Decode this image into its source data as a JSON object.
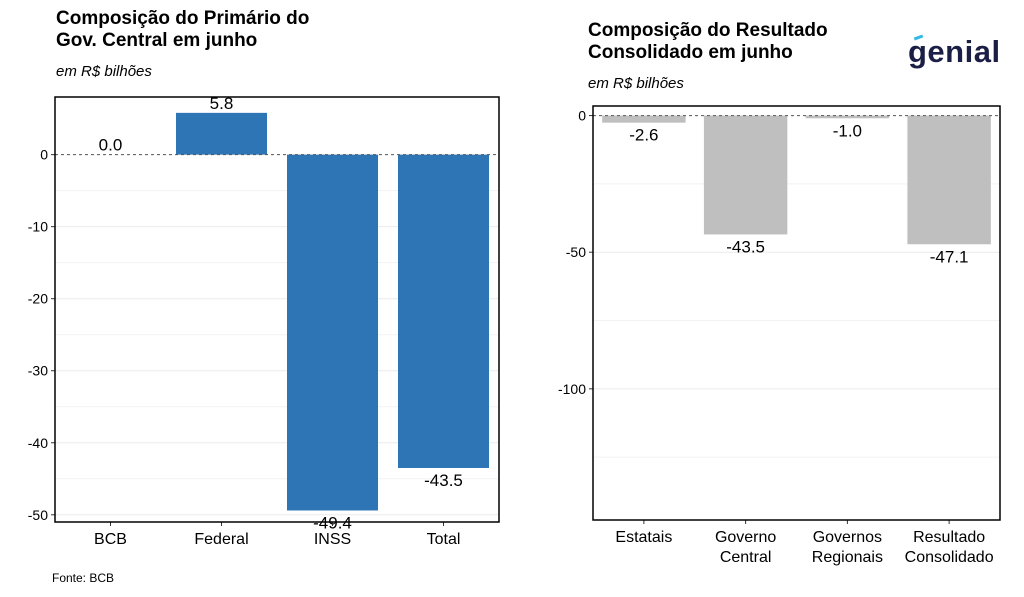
{
  "left": {
    "title_line1": "Composição do Primário do",
    "title_line2": "Gov. Central em junho",
    "subtitle": "em R$ bilhões"
  },
  "right": {
    "title_line1": "Composição do Resultado",
    "title_line2": "Consolidado em junho",
    "subtitle": "em R$ bilhões"
  },
  "source": "Fonte: BCB",
  "logo": "genial",
  "colors": {
    "left_bar": "#2e75b6",
    "right_bar": "#bfbfbf"
  },
  "chart_data": [
    {
      "type": "bar",
      "title": "Composição do Primário do Gov. Central em junho",
      "subtitle": "em R$ bilhões",
      "categories": [
        "BCB",
        "Federal",
        "INSS",
        "Total"
      ],
      "values": [
        0.0,
        5.8,
        -49.4,
        -43.5
      ],
      "data_labels": [
        "0.0",
        "5.8",
        "-49.4",
        "-43.5"
      ],
      "yticks": [
        0,
        -10,
        -20,
        -30,
        -40,
        -50
      ],
      "ylim": [
        -51,
        8
      ],
      "grid": true,
      "zero_line": "dashed"
    },
    {
      "type": "bar",
      "title": "Composição do Resultado Consolidado em junho",
      "subtitle": "em R$ bilhões",
      "categories": [
        "Estatais",
        "Governo Central",
        "Governos Regionais",
        "Resultado Consolidado"
      ],
      "tick_lines": [
        [
          "Estatais"
        ],
        [
          "Governo",
          "Central"
        ],
        [
          "Governos",
          "Regionais"
        ],
        [
          "Resultado",
          "Consolidado"
        ]
      ],
      "values": [
        -2.6,
        -43.5,
        -1.0,
        -47.1
      ],
      "data_labels": [
        "-2.6",
        "-43.5",
        "-1.0",
        "-47.1"
      ],
      "yticks": [
        0,
        -50,
        -100
      ],
      "ylim": [
        -148,
        3.5
      ],
      "grid": true,
      "zero_line": "dashed"
    }
  ]
}
